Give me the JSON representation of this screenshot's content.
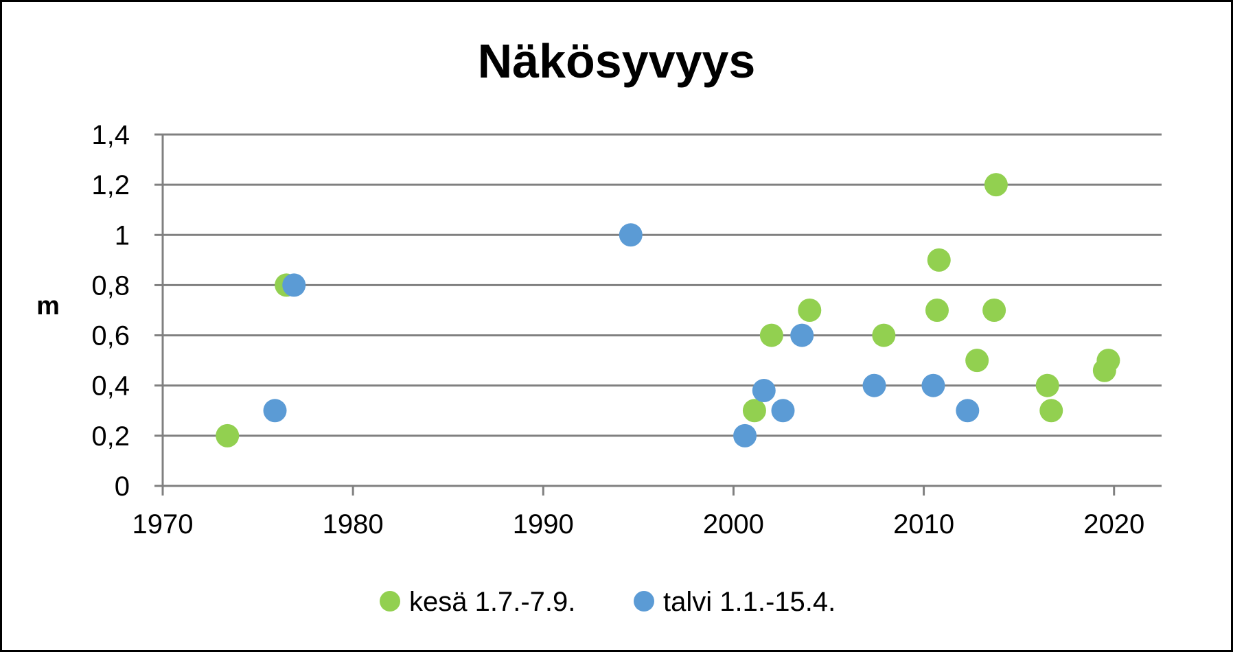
{
  "chart_data": {
    "type": "scatter",
    "title": "Näkösyvyys",
    "ylabel": "m",
    "xlabel": "",
    "xlim": [
      1970,
      2022.5
    ],
    "ylim": [
      0,
      1.4
    ],
    "x_ticks": [
      1970,
      1980,
      1990,
      2000,
      2010,
      2020
    ],
    "x_tick_labels": [
      "1970",
      "1980",
      "1990",
      "2000",
      "2010",
      "2020"
    ],
    "y_ticks": [
      0,
      0.2,
      0.4,
      0.6,
      0.8,
      1.0,
      1.2,
      1.4
    ],
    "y_tick_labels": [
      "0",
      "0,2",
      "0,4",
      "0,6",
      "0,8",
      "1",
      "1,2",
      "1,4"
    ],
    "grid": "horizontal",
    "legend_position": "bottom",
    "series": [
      {
        "name": "kesä 1.7.-7.9.",
        "color": "#92d050",
        "points": [
          {
            "x": 1973.4,
            "y": 0.2
          },
          {
            "x": 1976.5,
            "y": 0.8
          },
          {
            "x": 2001.1,
            "y": 0.3
          },
          {
            "x": 2002.0,
            "y": 0.6
          },
          {
            "x": 2004.0,
            "y": 0.7
          },
          {
            "x": 2007.9,
            "y": 0.6
          },
          {
            "x": 2010.7,
            "y": 0.7
          },
          {
            "x": 2010.8,
            "y": 0.9
          },
          {
            "x": 2012.8,
            "y": 0.5
          },
          {
            "x": 2013.7,
            "y": 0.7
          },
          {
            "x": 2013.8,
            "y": 1.2
          },
          {
            "x": 2016.5,
            "y": 0.4
          },
          {
            "x": 2016.7,
            "y": 0.3
          },
          {
            "x": 2019.5,
            "y": 0.46
          },
          {
            "x": 2019.7,
            "y": 0.5
          }
        ]
      },
      {
        "name": "talvi 1.1.-15.4.",
        "color": "#5b9bd5",
        "points": [
          {
            "x": 1975.9,
            "y": 0.3
          },
          {
            "x": 1976.9,
            "y": 0.8
          },
          {
            "x": 1994.6,
            "y": 1.0
          },
          {
            "x": 2000.6,
            "y": 0.2
          },
          {
            "x": 2001.6,
            "y": 0.38
          },
          {
            "x": 2002.6,
            "y": 0.3
          },
          {
            "x": 2003.6,
            "y": 0.6
          },
          {
            "x": 2007.4,
            "y": 0.4
          },
          {
            "x": 2010.5,
            "y": 0.4
          },
          {
            "x": 2012.3,
            "y": 0.3
          }
        ]
      }
    ]
  }
}
